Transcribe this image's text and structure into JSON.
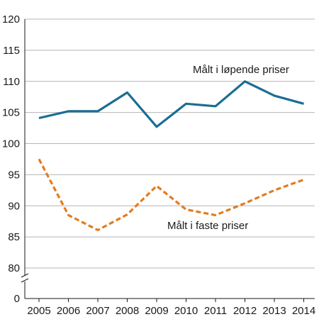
{
  "chart_data": {
    "type": "line",
    "title": "",
    "xlabel": "",
    "ylabel": "",
    "categories": [
      "2005",
      "2006",
      "2007",
      "2008",
      "2009",
      "2010",
      "2011",
      "2012",
      "2013",
      "2014"
    ],
    "y_ticks": [
      0,
      80,
      85,
      90,
      95,
      100,
      105,
      110,
      115,
      120
    ],
    "ylim": [
      80,
      120
    ],
    "y_axis_break": true,
    "grid": "horizontal",
    "series": [
      {
        "name": "Målt i løpende priser",
        "values": [
          104.1,
          105.2,
          105.2,
          108.2,
          102.7,
          106.4,
          106.0,
          110.0,
          107.7,
          106.4
        ],
        "color": "#1a6e92",
        "style": "solid"
      },
      {
        "name": "Målt i faste priser",
        "values": [
          97.5,
          88.5,
          86.1,
          88.6,
          93.2,
          89.4,
          88.5,
          90.4,
          92.5,
          94.2
        ],
        "color": "#e37b1e",
        "style": "dashed"
      }
    ]
  }
}
